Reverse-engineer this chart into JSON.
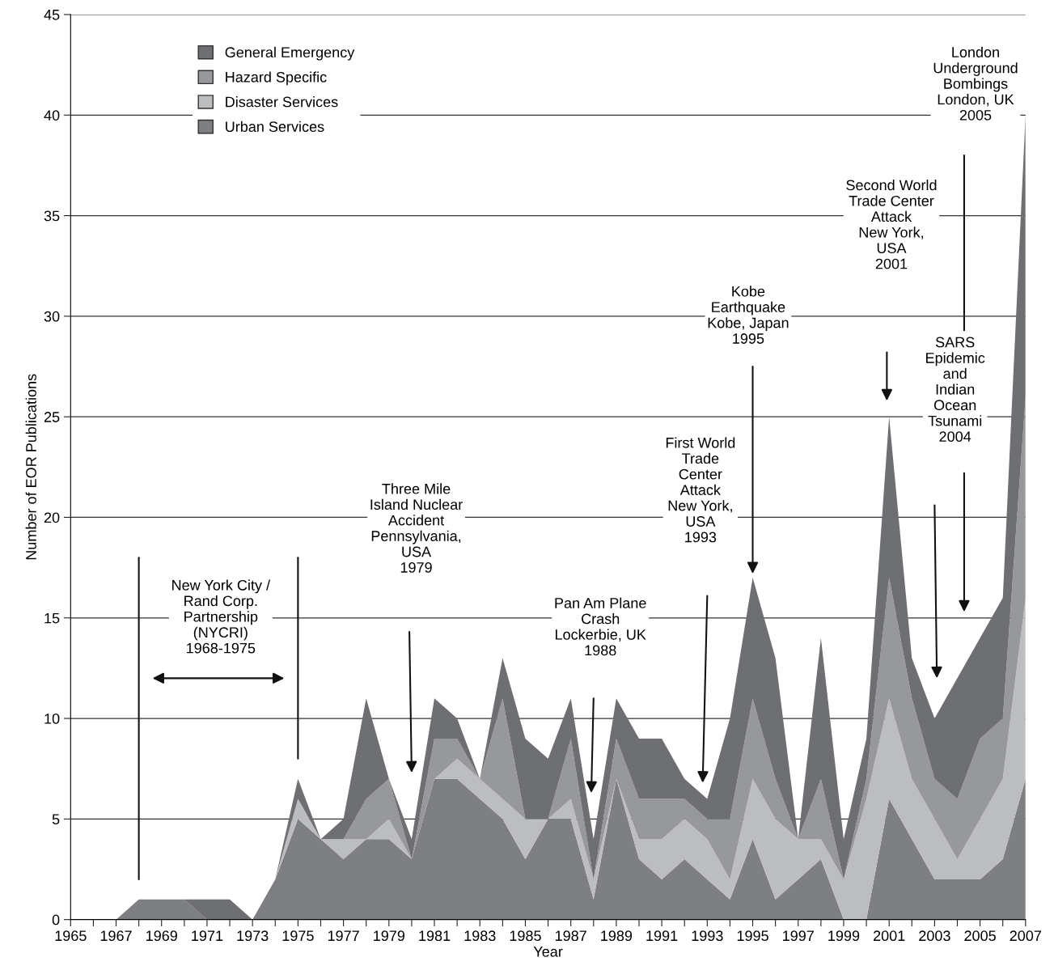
{
  "chart_data": {
    "type": "area",
    "stacked": true,
    "xlabel": "Year",
    "ylabel": "Number of EOR Publications",
    "x": [
      1965,
      1966,
      1967,
      1968,
      1969,
      1970,
      1971,
      1972,
      1973,
      1974,
      1975,
      1976,
      1977,
      1978,
      1979,
      1980,
      1981,
      1982,
      1983,
      1984,
      1985,
      1986,
      1987,
      1988,
      1989,
      1990,
      1991,
      1992,
      1993,
      1994,
      1995,
      1996,
      1997,
      1998,
      1999,
      2000,
      2001,
      2002,
      2003,
      2004,
      2005,
      2006,
      2007
    ],
    "series": [
      {
        "name": "Urban Services",
        "color": "#7e7f83",
        "values": [
          0,
          0,
          0,
          1,
          1,
          1,
          0,
          0,
          0,
          2,
          5,
          4,
          3,
          4,
          4,
          3,
          7,
          7,
          6,
          5,
          3,
          5,
          5,
          1,
          7,
          3,
          2,
          3,
          2,
          1,
          4,
          1,
          2,
          3,
          0,
          0,
          6,
          4,
          2,
          2,
          2,
          3,
          7
        ]
      },
      {
        "name": "Disaster Services",
        "color": "#bcbdbf",
        "values": [
          0,
          0,
          0,
          0,
          0,
          0,
          0,
          0,
          0,
          0,
          1,
          0,
          1,
          0,
          1,
          0,
          0,
          1,
          1,
          1,
          2,
          0,
          1,
          1,
          0,
          1,
          2,
          2,
          2,
          1,
          3,
          4,
          2,
          1,
          2,
          6,
          5,
          3,
          3,
          1,
          3,
          4,
          9
        ]
      },
      {
        "name": "Hazard Specific",
        "color": "#97989b",
        "values": [
          0,
          0,
          0,
          0,
          0,
          0,
          0,
          0,
          0,
          0,
          0,
          0,
          0,
          2,
          2,
          0,
          2,
          1,
          0,
          5,
          0,
          0,
          3,
          0,
          2,
          2,
          2,
          1,
          1,
          3,
          4,
          2,
          0,
          3,
          0,
          1,
          6,
          4,
          2,
          3,
          4,
          3,
          10
        ]
      },
      {
        "name": "General Emergency",
        "color": "#6e6f73",
        "values": [
          0,
          0,
          0,
          0,
          0,
          0,
          1,
          1,
          0,
          0,
          1,
          0,
          1,
          5,
          0,
          1,
          2,
          1,
          0,
          2,
          4,
          3,
          2,
          2,
          2,
          3,
          3,
          1,
          1,
          5,
          6,
          6,
          0,
          7,
          2,
          2,
          8,
          2,
          3,
          6,
          5,
          6,
          14
        ]
      }
    ],
    "xlim": [
      1965,
      2007
    ],
    "ylim": [
      0,
      45
    ],
    "xticks": [
      1965,
      {
        "value": 1966,
        "label": null
      },
      1967,
      {
        "value": 1968,
        "label": null
      },
      1969,
      {
        "value": 1970,
        "label": null
      },
      1971,
      {
        "value": 1972,
        "label": null
      },
      1973,
      {
        "value": 1974,
        "label": null
      },
      1975,
      {
        "value": 1976,
        "label": null
      },
      1977,
      {
        "value": 1978,
        "label": null
      },
      1979,
      {
        "value": 1980,
        "label": null
      },
      1981,
      {
        "value": 1982,
        "label": null
      },
      1983,
      {
        "value": 1984,
        "label": null
      },
      1985,
      {
        "value": 1986,
        "label": null
      },
      1987,
      {
        "value": 1988,
        "label": null
      },
      1989,
      {
        "value": 1990,
        "label": null
      },
      1991,
      {
        "value": 1992,
        "label": null
      },
      1993,
      {
        "value": 1994,
        "label": null
      },
      1995,
      {
        "value": 1996,
        "label": null
      },
      1997,
      {
        "value": 1998,
        "label": null
      },
      1999,
      {
        "value": 2000,
        "label": null
      },
      2001,
      {
        "value": 2002,
        "label": null
      },
      2003,
      {
        "value": 2004,
        "label": null
      },
      2005,
      {
        "value": 2006,
        "label": null
      },
      2007
    ],
    "yticks": [
      0,
      5,
      10,
      15,
      20,
      25,
      30,
      35,
      40,
      45
    ],
    "grid": "y",
    "legend": "top left",
    "annotations": [
      "New York City /\nRand Corp.\nPartnership\n(NYCRI)\n1968-1975",
      "Three Mile\nIsland Nuclear\nAccident\nPennsylvania,\nUSA\n1979",
      "Pan Am Plane\nCrash\nLockerbie, UK\n1988",
      "First World\nTrade\nCenter\nAttack\nNew York,\nUSA\n1993",
      "Kobe\nEarthquake\nKobe, Japan\n1995",
      "Second World\nTrade Center\nAttack\nNew York,\nUSA\n2001",
      "SARS\nEpidemic\nand\nIndian\nOcean\nTsunami\n2004",
      "London\nUnderground\nBombings\nLondon, UK\n2005"
    ]
  }
}
